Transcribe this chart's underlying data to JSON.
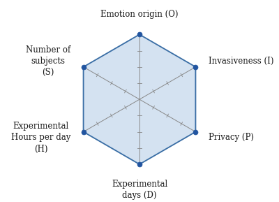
{
  "categories": [
    "Emotion origin (O)",
    "Invasiveness (I)",
    "Privacy (P)",
    "Experimental\ndays (D)",
    "Experimental\nHours per day\n(H)",
    "Number of\nsubjects\n(S)"
  ],
  "values": [
    1.0,
    1.0,
    1.0,
    1.0,
    1.0,
    1.0
  ],
  "n_ticks": 4,
  "fill_color": "#b8d0e8",
  "fill_alpha": 0.6,
  "line_color": "#3a6ea5",
  "axis_color": "#888888",
  "dot_color": "#2255a0",
  "dot_size": 5,
  "background_color": "#ffffff",
  "tick_color": "#888888",
  "label_fontsize": 8.5,
  "label_color": "#1a1a1a"
}
